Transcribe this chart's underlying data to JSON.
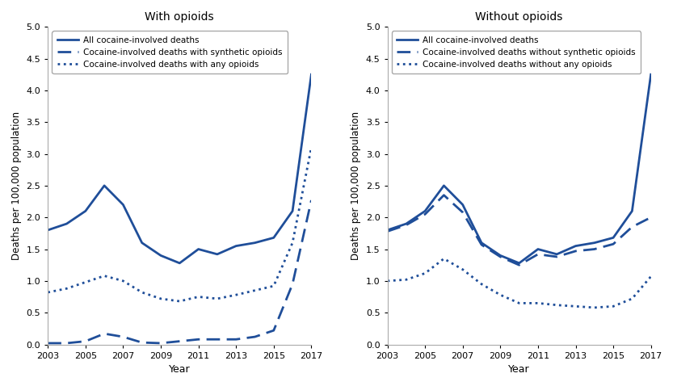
{
  "years": [
    2003,
    2004,
    2005,
    2006,
    2007,
    2008,
    2009,
    2010,
    2011,
    2012,
    2013,
    2014,
    2015,
    2016,
    2017
  ],
  "left_title": "With opioids",
  "left_legend": [
    "All cocaine-involved deaths",
    "Cocaine-involved deaths with synthetic opioids",
    "Cocaine-involved deaths with any opioids"
  ],
  "left_all": [
    1.8,
    1.9,
    2.1,
    2.5,
    2.2,
    1.6,
    1.4,
    1.28,
    1.5,
    1.42,
    1.55,
    1.6,
    1.68,
    2.1,
    4.25
  ],
  "left_synthetic": [
    0.02,
    0.02,
    0.05,
    0.17,
    0.12,
    0.03,
    0.02,
    0.05,
    0.08,
    0.08,
    0.08,
    0.12,
    0.22,
    0.95,
    2.27
  ],
  "left_any": [
    0.82,
    0.88,
    0.98,
    1.08,
    1.0,
    0.82,
    0.72,
    0.68,
    0.75,
    0.72,
    0.78,
    0.85,
    0.92,
    1.6,
    3.1
  ],
  "right_title": "Without opioids",
  "right_legend": [
    "All cocaine-involved deaths",
    "Cocaine-involved deaths without synthetic opioids",
    "Cocaine-involved deaths without any opioids"
  ],
  "right_all": [
    1.8,
    1.9,
    2.1,
    2.5,
    2.2,
    1.6,
    1.4,
    1.28,
    1.5,
    1.42,
    1.55,
    1.6,
    1.68,
    2.1,
    4.25
  ],
  "right_no_synthetic": [
    1.78,
    1.88,
    2.05,
    2.35,
    2.08,
    1.57,
    1.38,
    1.25,
    1.42,
    1.38,
    1.47,
    1.5,
    1.58,
    1.85,
    2.0
  ],
  "right_no_any": [
    1.0,
    1.02,
    1.12,
    1.35,
    1.18,
    0.95,
    0.78,
    0.65,
    0.65,
    0.62,
    0.6,
    0.58,
    0.6,
    0.72,
    1.07
  ],
  "line_color": "#1f4e99",
  "ylim": [
    0,
    5.0
  ],
  "yticks": [
    0,
    0.5,
    1.0,
    1.5,
    2.0,
    2.5,
    3.0,
    3.5,
    4.0,
    4.5,
    5.0
  ],
  "xlabel": "Year",
  "ylabel": "Deaths per 100,000 population",
  "background_color": "#ffffff"
}
